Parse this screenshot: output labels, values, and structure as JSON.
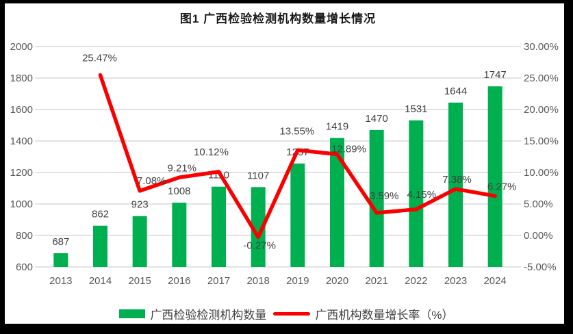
{
  "title": "图1 广西检验检测机构数量增长情况",
  "legend": [
    {
      "label": "广西检验检测机构数量",
      "swatch": "bar",
      "color": "#00B050"
    },
    {
      "label": "广西机构数量增长率（%）",
      "swatch": "line",
      "color": "#FA0000"
    }
  ],
  "colors": {
    "bar": "#00B050",
    "line": "#FA0000",
    "gridline": "#D9D9D9",
    "tick_mark": "#D9D9D9",
    "axis_text": "#595959",
    "data_label_text": "#404040",
    "frame": "#000000",
    "background": "#FFFFFF"
  },
  "chart_data": {
    "type": "bar",
    "subtype": "bar+line combo, dual axis",
    "title": "图1 广西检验检测机构数量增长情况",
    "categories": [
      "2013",
      "2014",
      "2015",
      "2016",
      "2017",
      "2018",
      "2019",
      "2020",
      "2021",
      "2022",
      "2023",
      "2024"
    ],
    "series": [
      {
        "name": "广西检验检测机构数量",
        "type": "bar",
        "axis": "left",
        "color": "#00B050",
        "values": [
          687,
          862,
          923,
          1008,
          1110,
          1107,
          1257,
          1419,
          1470,
          1531,
          1644,
          1747
        ],
        "labels": [
          "687",
          "862",
          "923",
          "1008",
          "1110",
          "1107",
          "1257",
          "1419",
          "1470",
          "1531",
          "1644",
          "1747"
        ]
      },
      {
        "name": "广西机构数量增长率（%）",
        "type": "line",
        "axis": "right",
        "color": "#FA0000",
        "values": [
          null,
          25.47,
          7.08,
          9.21,
          10.12,
          -0.27,
          13.55,
          12.89,
          3.59,
          4.15,
          7.38,
          6.27
        ],
        "labels": [
          null,
          "25.47%",
          "7.08%",
          "9.21%",
          "10.12%",
          "-0.27%",
          "13.55%",
          "12.89%",
          "3.59%",
          "4.15%",
          "7.38%",
          "6.27%"
        ],
        "label_offsets": [
          [
            0,
            0
          ],
          [
            -1,
            -25
          ],
          [
            17,
            -15
          ],
          [
            4,
            -14
          ],
          [
            -11,
            -29
          ],
          [
            2,
            12
          ],
          [
            -1,
            -28
          ],
          [
            17,
            -8
          ],
          [
            11,
            -25
          ],
          [
            8,
            -22
          ],
          [
            2,
            -14
          ],
          [
            10,
            -14
          ]
        ]
      }
    ],
    "axes": {
      "left": {
        "min": 600,
        "max": 2000,
        "step": 200,
        "ticks": [
          "600",
          "800",
          "1000",
          "1200",
          "1400",
          "1600",
          "1800",
          "2000"
        ]
      },
      "right": {
        "min": -5,
        "max": 30,
        "step": 5,
        "ticks": [
          "-5.00%",
          "0.00%",
          "5.00%",
          "10.00%",
          "15.00%",
          "20.00%",
          "25.00%",
          "30.00%"
        ]
      }
    },
    "xlabel": "",
    "ylabel_left": "",
    "ylabel_right": "",
    "grid": true,
    "legend_position": "bottom"
  }
}
